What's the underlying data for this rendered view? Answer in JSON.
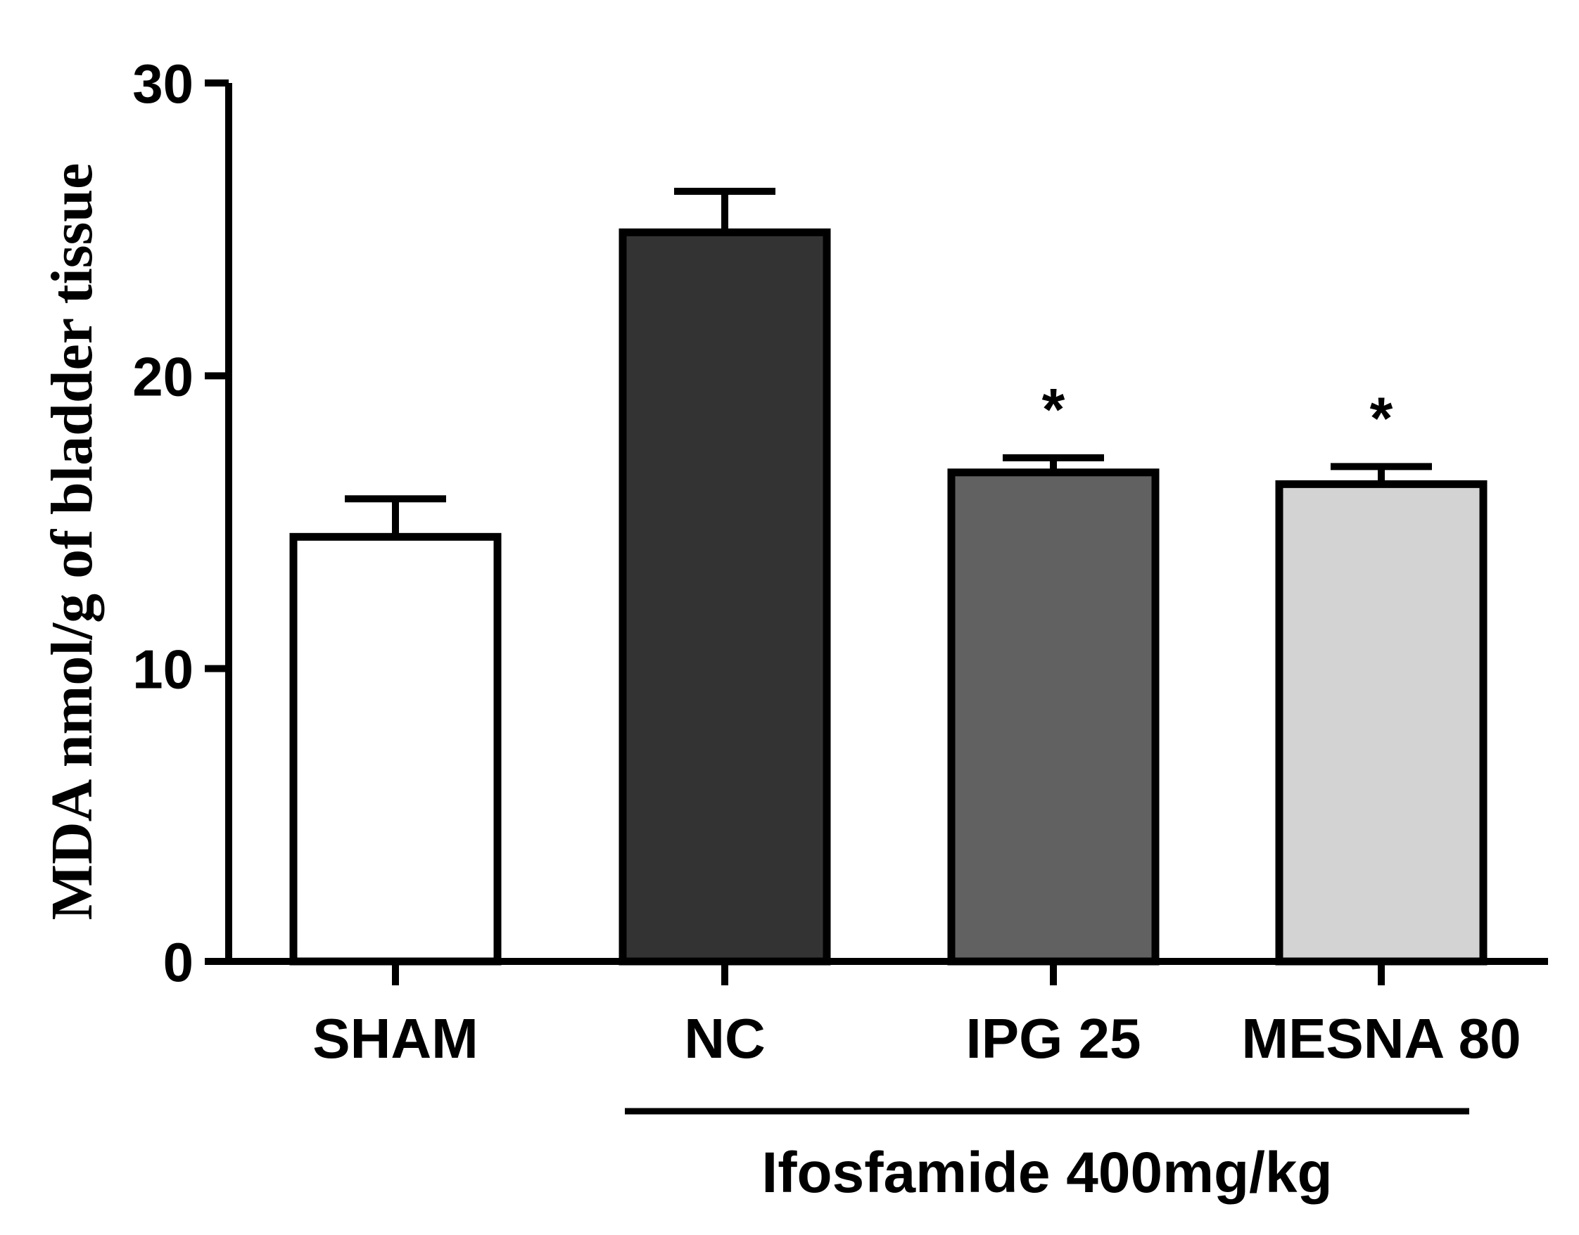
{
  "chart_data": {
    "type": "bar",
    "title": "",
    "xlabel": "",
    "ylabel": "MDA nmol/g of bladder tissue",
    "ylim": [
      0,
      30
    ],
    "yticks": [
      0,
      10,
      20,
      30
    ],
    "grid": false,
    "categories": [
      "SHAM",
      "NC",
      "IPG 25",
      "MESNA 80"
    ],
    "values": [
      14.5,
      24.9,
      16.7,
      16.3
    ],
    "errors": [
      1.3,
      1.4,
      0.5,
      0.6
    ],
    "annotations": [
      "",
      "",
      "*",
      "*"
    ],
    "colors": [
      "#ffffff",
      "#333333",
      "#616161",
      "#d3d3d3"
    ],
    "group": {
      "label": "Ifosfamide 400mg/kg",
      "members": [
        "NC",
        "IPG 25",
        "MESNA 80"
      ]
    }
  }
}
